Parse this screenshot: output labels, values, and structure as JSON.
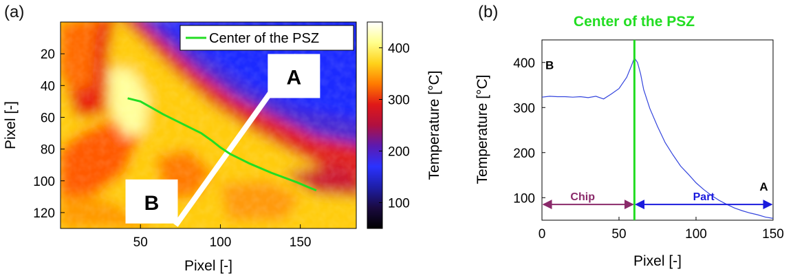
{
  "panel_a": {
    "label": "(a)"
  },
  "panel_b": {
    "label": "(b)"
  },
  "chart_data": [
    {
      "type": "heatmap",
      "panel": "(a)",
      "xlabel": "Pixel [-]",
      "ylabel": "Pixel [-]",
      "xlim": [
        0,
        185
      ],
      "ylim": [
        130,
        0
      ],
      "xticks": [
        50,
        100,
        150
      ],
      "yticks": [
        20,
        40,
        60,
        80,
        100,
        120
      ],
      "colorbar": {
        "label": "Temperature [°C]",
        "range": [
          50,
          450
        ],
        "ticks": [
          100,
          200,
          300,
          400
        ],
        "colormap": [
          "#000000",
          "#1a0a40",
          "#1e1ea8",
          "#2a32ff",
          "#5c1ab0",
          "#b01040",
          "#e01818",
          "#ff7a00",
          "#ffd21a",
          "#ffff8c",
          "#ffffff"
        ]
      },
      "legend": {
        "entries": [
          "Center of the PSZ"
        ],
        "placement": "top-right"
      },
      "psz_center_line": {
        "name": "Center of the PSZ",
        "color": "#22dd22",
        "x": [
          42,
          50,
          57,
          64,
          72,
          80,
          88,
          95,
          100,
          106,
          112,
          118,
          125,
          132,
          140,
          148,
          155,
          160
        ],
        "y": [
          48,
          50,
          54,
          58,
          62,
          66,
          70,
          75,
          79,
          83,
          86,
          89,
          92,
          95,
          98,
          101,
          104,
          106
        ]
      },
      "section_line": {
        "from": [
          72,
          128
        ],
        "to": [
          148,
          21
        ],
        "color": "#ffffff"
      },
      "annotations": [
        {
          "text": "A",
          "x": 146,
          "y": 34
        },
        {
          "text": "B",
          "x": 57,
          "y": 113
        }
      ]
    },
    {
      "type": "line",
      "panel": "(b)",
      "title": "Center of the PSZ",
      "title_color": "#22dd22",
      "xlabel": "Pixel [-]",
      "ylabel": "Temperature [°C]",
      "xlim": [
        0,
        150
      ],
      "ylim": [
        50,
        450
      ],
      "xticks": [
        0,
        50,
        100,
        150
      ],
      "yticks": [
        100,
        200,
        300,
        400
      ],
      "series": [
        {
          "color": "#3344dd",
          "x": [
            0,
            5,
            10,
            15,
            20,
            25,
            30,
            35,
            40,
            45,
            50,
            55,
            58,
            60,
            62,
            64,
            66,
            70,
            75,
            80,
            85,
            90,
            95,
            100,
            105,
            110,
            115,
            120,
            125,
            130,
            135,
            140,
            145,
            150
          ],
          "y": [
            325,
            323,
            326,
            322,
            325,
            322,
            324,
            323,
            321,
            330,
            342,
            367,
            392,
            410,
            400,
            375,
            340,
            298,
            258,
            222,
            195,
            170,
            152,
            133,
            118,
            105,
            94,
            85,
            77,
            71,
            66,
            62,
            57,
            54
          ]
        }
      ],
      "vline": {
        "x": 60,
        "color": "#22dd22"
      },
      "regions": [
        {
          "label": "Chip",
          "from": 0,
          "to": 60,
          "y": 85,
          "color": "#8a2a6a"
        },
        {
          "label": "Part",
          "from": 60,
          "to": 150,
          "y": 85,
          "color": "#1a1add"
        }
      ],
      "annotations": [
        {
          "text": "B",
          "x": 5,
          "y": 385
        },
        {
          "text": "A",
          "x": 144,
          "y": 116
        }
      ]
    }
  ]
}
